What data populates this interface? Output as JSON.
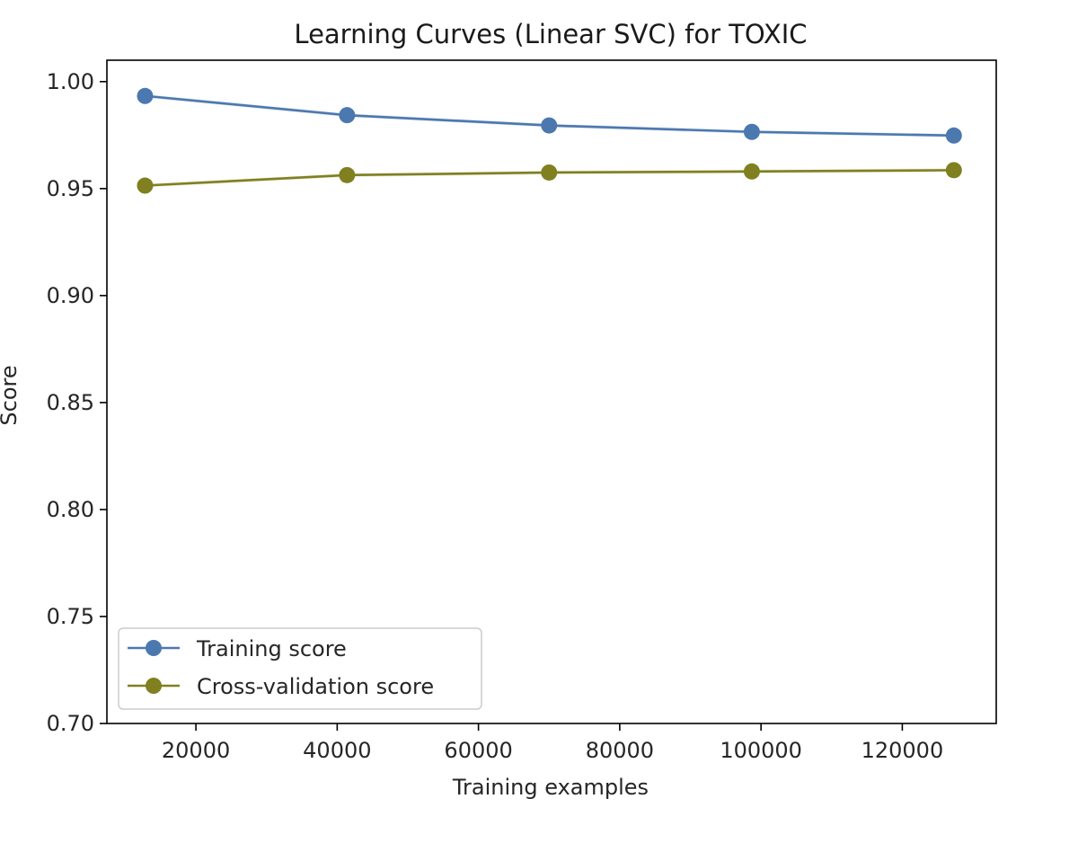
{
  "chart_data": {
    "type": "line",
    "title": "Learning Curves (Linear SVC) for TOXIC",
    "xlabel": "Training examples",
    "ylabel": "Score",
    "xlim": [
      7400,
      133300
    ],
    "ylim": [
      0.7,
      1.01
    ],
    "x_ticks": [
      20000,
      40000,
      60000,
      80000,
      100000,
      120000
    ],
    "x_tick_labels": [
      "20000",
      "40000",
      "60000",
      "80000",
      "100000",
      "120000"
    ],
    "y_ticks": [
      0.7,
      0.75,
      0.8,
      0.85,
      0.9,
      0.95,
      1.0
    ],
    "y_tick_labels": [
      "0.70",
      "0.75",
      "0.80",
      "0.85",
      "0.90",
      "0.95",
      "1.00"
    ],
    "grid": false,
    "legend_position": "lower-left",
    "x": [
      12800,
      41400,
      70000,
      98700,
      127300
    ],
    "series": [
      {
        "name": "Training score",
        "color": "#4c78b0",
        "values": [
          0.9933,
          0.9843,
          0.9795,
          0.9765,
          0.9748
        ]
      },
      {
        "name": "Cross-validation score",
        "color": "#808020",
        "values": [
          0.9514,
          0.9563,
          0.9575,
          0.958,
          0.9586
        ]
      }
    ]
  }
}
